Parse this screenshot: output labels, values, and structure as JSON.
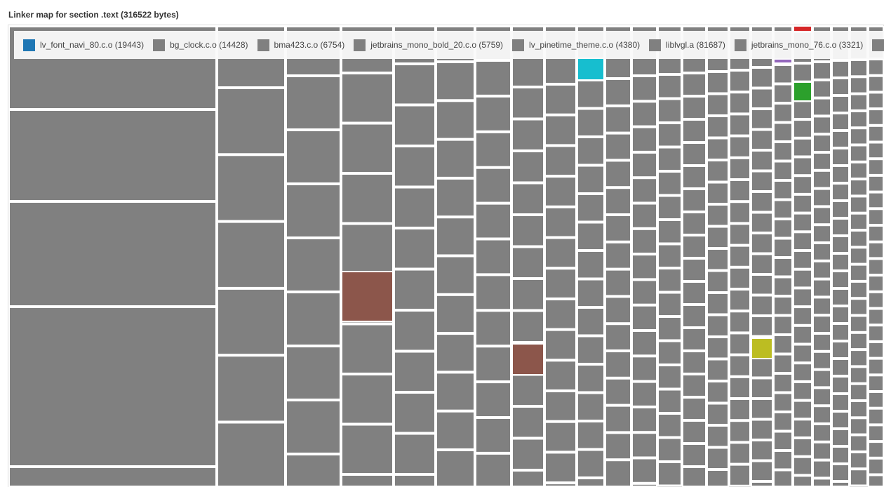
{
  "chart_data": {
    "type": "treemap",
    "title": "Linker map for section .text (316522 bytes)",
    "legend": [
      {
        "name": "lv_font_navi_80.c.o",
        "label": "lv_font_navi_80.c.o (19443)",
        "size": 19443,
        "color": "#1f77b4"
      },
      {
        "name": "bg_clock.c.o",
        "label": "bg_clock.c.o (14428)",
        "size": 14428,
        "color": "#808080"
      },
      {
        "name": "bma423.c.o",
        "label": "bma423.c.o (6754)",
        "size": 6754,
        "color": "#808080"
      },
      {
        "name": "jetbrains_mono_bold_20.c.o",
        "label": "jetbrains_mono_bold_20.c.o (5759)",
        "size": 5759,
        "color": "#808080"
      },
      {
        "name": "lv_pinetime_theme.c.o",
        "label": "lv_pinetime_theme.c.o (4380)",
        "size": 4380,
        "color": "#808080"
      },
      {
        "name": "liblvgl.a",
        "label": "liblvgl.a (81687)",
        "size": 81687,
        "color": "#808080"
      },
      {
        "name": "jetbrains_mono_76.c.o",
        "label": "jetbrains_mono_76.c.o (3321)",
        "size": 3321,
        "color": "#808080"
      },
      {
        "name": "",
        "label": "",
        "color": "#808080"
      }
    ],
    "cell_color_default": "#808080",
    "highlight_colors": [
      "#8c564b",
      "#17becf",
      "#bcbd22",
      "#9467bd",
      "#d62728",
      "#2ca02c"
    ]
  }
}
